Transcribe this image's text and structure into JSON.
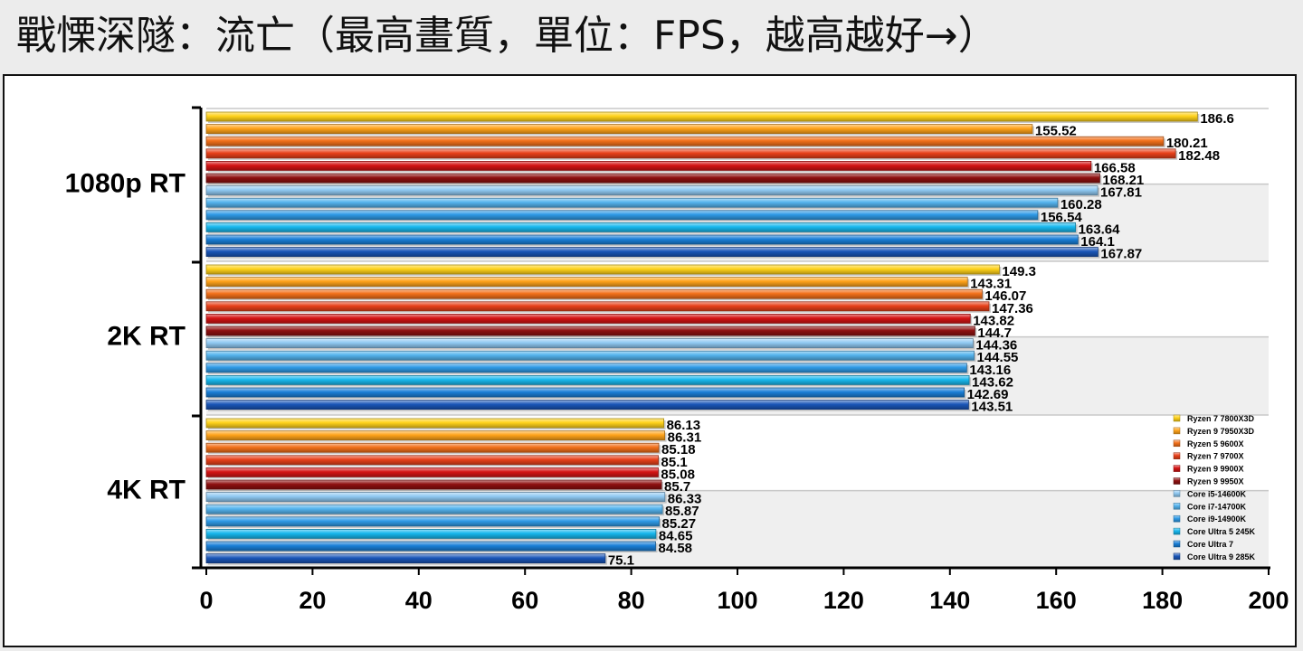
{
  "title": "戰慄深隧：流亡（最高畫質，單位：FPS，越高越好→）",
  "chart_data": {
    "type": "bar",
    "orientation": "horizontal",
    "title": "戰慄深隧：流亡（最高畫質，單位：FPS，越高越好→）",
    "xlabel": "",
    "ylabel": "",
    "xlim": [
      0,
      200
    ],
    "x_ticks": [
      "0",
      "20",
      "40",
      "60",
      "80",
      "100",
      "120",
      "140",
      "160",
      "180",
      "200"
    ],
    "grid": false,
    "legend_position": "bottom-right",
    "categories": [
      "1080p RT",
      "2K RT",
      "4K RT"
    ],
    "series": [
      {
        "name": "Ryzen 7 7800X3D",
        "color": "#ffd21a",
        "values": [
          186.6,
          149.3,
          86.13
        ]
      },
      {
        "name": "Ryzen 9 7950X3D",
        "color": "#ffa31a",
        "values": [
          155.52,
          143.31,
          86.31
        ]
      },
      {
        "name": "Ryzen 5 9600X",
        "color": "#f2701a",
        "values": [
          180.21,
          146.07,
          85.18
        ]
      },
      {
        "name": "Ryzen 7 9700X",
        "color": "#e8401a",
        "values": [
          182.48,
          147.36,
          85.1
        ]
      },
      {
        "name": "Ryzen 9 9900X",
        "color": "#d41414",
        "values": [
          166.58,
          143.82,
          85.08
        ]
      },
      {
        "name": "Ryzen 9 9950X",
        "color": "#8e1010",
        "values": [
          168.21,
          144.7,
          85.7
        ]
      },
      {
        "name": "Core i5-14600K",
        "color": "#8fc8f2",
        "values": [
          167.81,
          144.36,
          86.33
        ]
      },
      {
        "name": "Core i7-14700K",
        "color": "#55b4ee",
        "values": [
          160.28,
          144.55,
          85.87
        ]
      },
      {
        "name": "Core i9-14900K",
        "color": "#2f9ae6",
        "values": [
          156.54,
          143.16,
          85.27
        ]
      },
      {
        "name": "Core Ultra 5 245K",
        "color": "#18b8ee",
        "values": [
          163.64,
          143.62,
          84.65
        ]
      },
      {
        "name": "Core Ultra 7",
        "color": "#1a7fd8",
        "values": [
          164.1,
          142.69,
          84.58
        ]
      },
      {
        "name": "Core Ultra 9 285K",
        "color": "#1a56b8",
        "values": [
          167.87,
          143.51,
          75.1
        ]
      }
    ]
  }
}
